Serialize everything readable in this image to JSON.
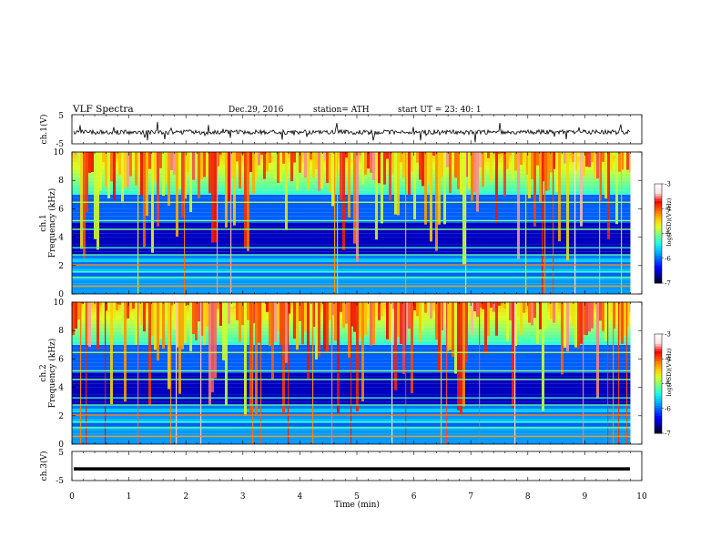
{
  "header": {
    "title": "VLF  Spectra",
    "date": "Dec.29,  2016",
    "station": "station= ATH",
    "start": "start  UT  =    23: 40: 1"
  },
  "colors": {
    "background": "#ffffff",
    "axis": "#000000",
    "trace": "#000000",
    "colormap": [
      "#000000",
      "#00008f",
      "#0000ff",
      "#005fff",
      "#00bfff",
      "#20ffdf",
      "#7fff7f",
      "#dfff20",
      "#ffbf00",
      "#ff5f00",
      "#ef0000",
      "#ffdfdf",
      "#ffffff"
    ]
  },
  "chart_data": [
    {
      "name": "ch1-waveform",
      "type": "line",
      "ylabel": "ch.1(V)",
      "ylim": [
        -5,
        5
      ],
      "y_ticks": [
        "5",
        "-5"
      ],
      "xlim": [
        0,
        10
      ],
      "trace_level": -1.0,
      "trace_extent_min": 9.8
    },
    {
      "name": "ch1-spectrogram",
      "type": "heatmap",
      "ylabel": "ch.1\nFrequency  (kHz)",
      "ylim": [
        0,
        10
      ],
      "y_ticks": [
        "0",
        "2",
        "4",
        "6",
        "8",
        "10"
      ],
      "xlim": [
        0,
        10
      ],
      "data_extent_min": 9.8,
      "colorbar": {
        "range": [
          -7,
          -3
        ],
        "ticks": [
          "-3",
          "-4",
          "-5",
          "-6",
          "-7"
        ],
        "label": "log(PSD)(V²/Hz)"
      }
    },
    {
      "name": "ch2-spectrogram",
      "type": "heatmap",
      "ylabel": "ch.2\nFrequency  (kHz)",
      "ylim": [
        0,
        10
      ],
      "y_ticks": [
        "0",
        "2",
        "4",
        "6",
        "8",
        "10"
      ],
      "xlim": [
        0,
        10
      ],
      "data_extent_min": 9.8,
      "colorbar": {
        "range": [
          -7,
          -3
        ],
        "ticks": [
          "-3",
          "-4",
          "-5",
          "-6",
          "-7"
        ],
        "label": "log(PSD)(V²/Hz)"
      }
    },
    {
      "name": "ch3-waveform",
      "type": "line",
      "ylabel": "ch.3(V)",
      "ylim": [
        -5,
        5
      ],
      "y_ticks": [
        "5",
        "-5"
      ],
      "xlim": [
        0,
        10
      ],
      "trace_level": -1.0,
      "trace_extent_min": 9.8,
      "xlabel": "Time  (min)",
      "x_ticks": [
        "0",
        "1",
        "2",
        "3",
        "4",
        "5",
        "6",
        "7",
        "8",
        "9",
        "10"
      ]
    }
  ]
}
